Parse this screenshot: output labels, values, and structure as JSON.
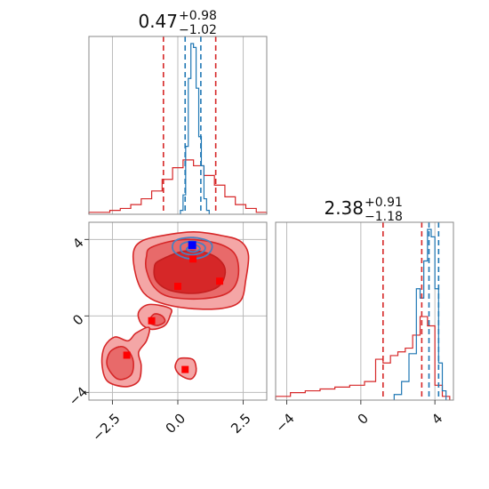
{
  "chart_data": [
    {
      "type": "histogram",
      "panel": "top-left",
      "title": {
        "main": "0.47",
        "sup": "+0.98",
        "sub": "−1.02"
      },
      "xlim": [
        -3.4,
        3.4
      ],
      "grid": true,
      "series": [
        {
          "color": "#d62728",
          "bins": [
            -3.4,
            -3.0,
            -2.6,
            -2.2,
            -1.8,
            -1.4,
            -1.0,
            -0.6,
            -0.2,
            0.2,
            0.6,
            1.0,
            1.4,
            1.8,
            2.2,
            2.6,
            3.0,
            3.4
          ],
          "heights": [
            0.01,
            0.01,
            0.02,
            0.03,
            0.05,
            0.08,
            0.12,
            0.18,
            0.24,
            0.28,
            0.25,
            0.2,
            0.15,
            0.09,
            0.05,
            0.03,
            0.01
          ]
        },
        {
          "color": "#1f77b4",
          "bins": [
            0.1,
            0.2,
            0.3,
            0.4,
            0.5,
            0.6,
            0.7,
            0.8,
            0.9,
            1.0,
            1.1,
            1.2
          ],
          "heights": [
            0.02,
            0.1,
            0.35,
            0.7,
            0.88,
            0.86,
            0.65,
            0.4,
            0.25,
            0.08,
            0.02
          ]
        }
      ],
      "vlines": [
        {
          "x": -0.55,
          "color": "#d62728"
        },
        {
          "x": 1.45,
          "color": "#d62728"
        },
        {
          "x": 0.28,
          "color": "#1f77b4"
        },
        {
          "x": 0.88,
          "color": "#1f77b4"
        }
      ]
    },
    {
      "type": "contour",
      "panel": "bottom-left",
      "xlim": [
        -3.4,
        3.4
      ],
      "ylim": [
        -4.4,
        4.9
      ],
      "xticks": [
        -2.5,
        0.0,
        2.5
      ],
      "xtick_labels": [
        "−2.5",
        "0.0",
        "2.5"
      ],
      "yticks": [
        -4,
        0,
        4
      ],
      "ytick_labels": [
        "−4",
        "0",
        "4"
      ],
      "grid": true,
      "red_contours": {
        "outer": [
          [
            [
              -1.4,
              3.9
            ],
            [
              -0.6,
              4.2
            ],
            [
              0.6,
              4.4
            ],
            [
              1.7,
              4.2
            ],
            [
              2.4,
              3.9
            ],
            [
              2.7,
              3.2
            ],
            [
              2.6,
              1.9
            ],
            [
              2.4,
              0.8
            ],
            [
              1.7,
              0.4
            ],
            [
              0.4,
              0.4
            ],
            [
              -0.7,
              0.7
            ],
            [
              -1.3,
              1.2
            ],
            [
              -1.6,
              2.1
            ],
            [
              -1.7,
              3.3
            ]
          ],
          [
            [
              -0.3,
              0.4
            ],
            [
              -1.1,
              0.6
            ],
            [
              -1.5,
              0.2
            ],
            [
              -1.4,
              -0.4
            ],
            [
              -1.0,
              -0.7
            ],
            [
              -0.5,
              -0.5
            ],
            [
              -0.3,
              0.0
            ]
          ],
          [
            [
              -1.1,
              -0.6
            ],
            [
              -1.6,
              -0.9
            ],
            [
              -1.9,
              -1.3
            ],
            [
              -2.4,
              -1.1
            ],
            [
              -2.8,
              -1.6
            ],
            [
              -2.9,
              -2.5
            ],
            [
              -2.7,
              -3.4
            ],
            [
              -2.0,
              -3.7
            ],
            [
              -1.5,
              -3.4
            ],
            [
              -1.4,
              -2.6
            ],
            [
              -1.5,
              -1.9
            ],
            [
              -1.2,
              -1.3
            ]
          ],
          [
            [
              0.2,
              -2.2
            ],
            [
              0.6,
              -2.3
            ],
            [
              0.7,
              -2.9
            ],
            [
              0.5,
              -3.3
            ],
            [
              0.1,
              -3.1
            ],
            [
              -0.1,
              -2.7
            ],
            [
              0.0,
              -2.3
            ]
          ]
        ],
        "inner": [
          [
            [
              -1.0,
              3.6
            ],
            [
              0.2,
              4.0
            ],
            [
              1.5,
              3.8
            ],
            [
              2.2,
              3.2
            ],
            [
              2.3,
              2.0
            ],
            [
              1.9,
              1.2
            ],
            [
              0.9,
              0.9
            ],
            [
              -0.3,
              1.0
            ],
            [
              -0.9,
              1.5
            ],
            [
              -1.2,
              2.4
            ],
            [
              -1.2,
              3.1
            ]
          ],
          [
            [
              -0.6,
              0.0
            ],
            [
              -0.9,
              0.1
            ],
            [
              -1.1,
              -0.3
            ],
            [
              -0.8,
              -0.5
            ],
            [
              -0.5,
              -0.3
            ]
          ],
          [
            [
              -2.2,
              -1.6
            ],
            [
              -2.6,
              -1.9
            ],
            [
              -2.7,
              -2.6
            ],
            [
              -2.3,
              -3.3
            ],
            [
              -1.8,
              -3.1
            ],
            [
              -1.7,
              -2.4
            ],
            [
              -1.9,
              -1.8
            ]
          ]
        ],
        "core": [
          [
            [
              -0.7,
              2.9
            ],
            [
              0.3,
              3.4
            ],
            [
              1.3,
              3.2
            ],
            [
              1.8,
              2.5
            ],
            [
              1.6,
              1.6
            ],
            [
              0.8,
              1.2
            ],
            [
              -0.2,
              1.3
            ],
            [
              -0.8,
              1.8
            ],
            [
              -0.9,
              2.5
            ]
          ]
        ]
      },
      "blue_contours": [
        [
          [
            0.0,
            4.0
          ],
          [
            0.6,
            4.1
          ],
          [
            1.2,
            3.9
          ],
          [
            1.3,
            3.5
          ],
          [
            1.0,
            3.1
          ],
          [
            0.4,
            3.0
          ],
          [
            -0.1,
            3.3
          ],
          [
            -0.2,
            3.7
          ]
        ],
        [
          [
            0.2,
            3.8
          ],
          [
            0.6,
            3.9
          ],
          [
            1.0,
            3.7
          ],
          [
            1.0,
            3.4
          ],
          [
            0.6,
            3.2
          ],
          [
            0.2,
            3.3
          ],
          [
            0.1,
            3.6
          ]
        ],
        [
          [
            0.4,
            3.6
          ],
          [
            0.7,
            3.7
          ],
          [
            0.85,
            3.5
          ],
          [
            0.6,
            3.35
          ],
          [
            0.35,
            3.45
          ]
        ]
      ],
      "red_markers": [
        [
          0.58,
          2.98
        ],
        [
          1.6,
          1.82
        ],
        [
          0.0,
          1.55
        ],
        [
          -1.0,
          -0.25
        ],
        [
          -1.95,
          -2.05
        ],
        [
          0.28,
          -2.8
        ]
      ],
      "blue_marker": [
        0.55,
        3.7
      ]
    },
    {
      "type": "histogram",
      "panel": "bottom-right",
      "title": {
        "main": "2.38",
        "sup": "+0.91",
        "sub": "−1.18"
      },
      "xlim": [
        -4.6,
        5.0
      ],
      "xticks": [
        -4,
        0,
        4
      ],
      "xtick_labels": [
        "−4",
        "0",
        "4"
      ],
      "grid": true,
      "series": [
        {
          "color": "#d62728",
          "bins": [
            -4.6,
            -3.8,
            -3.0,
            -2.2,
            -1.4,
            -0.6,
            0.2,
            0.8,
            1.2,
            1.6,
            2.0,
            2.4,
            2.8,
            3.2,
            3.6,
            4.0,
            4.4,
            4.8
          ],
          "heights": [
            0.02,
            0.04,
            0.05,
            0.06,
            0.07,
            0.08,
            0.1,
            0.22,
            0.2,
            0.24,
            0.26,
            0.28,
            0.35,
            0.45,
            0.4,
            0.08,
            0.02
          ]
        },
        {
          "color": "#1f77b4",
          "bins": [
            1.8,
            2.2,
            2.6,
            3.0,
            3.2,
            3.4,
            3.6,
            3.8,
            4.0,
            4.2,
            4.4,
            4.6
          ],
          "heights": [
            0.03,
            0.1,
            0.25,
            0.6,
            0.55,
            0.75,
            0.92,
            0.88,
            0.6,
            0.2,
            0.05
          ]
        }
      ],
      "vlines": [
        {
          "x": 1.2,
          "color": "#d62728"
        },
        {
          "x": 3.29,
          "color": "#d62728"
        },
        {
          "x": 3.68,
          "color": "#1f77b4"
        },
        {
          "x": 4.2,
          "color": "#1f77b4"
        }
      ]
    }
  ]
}
